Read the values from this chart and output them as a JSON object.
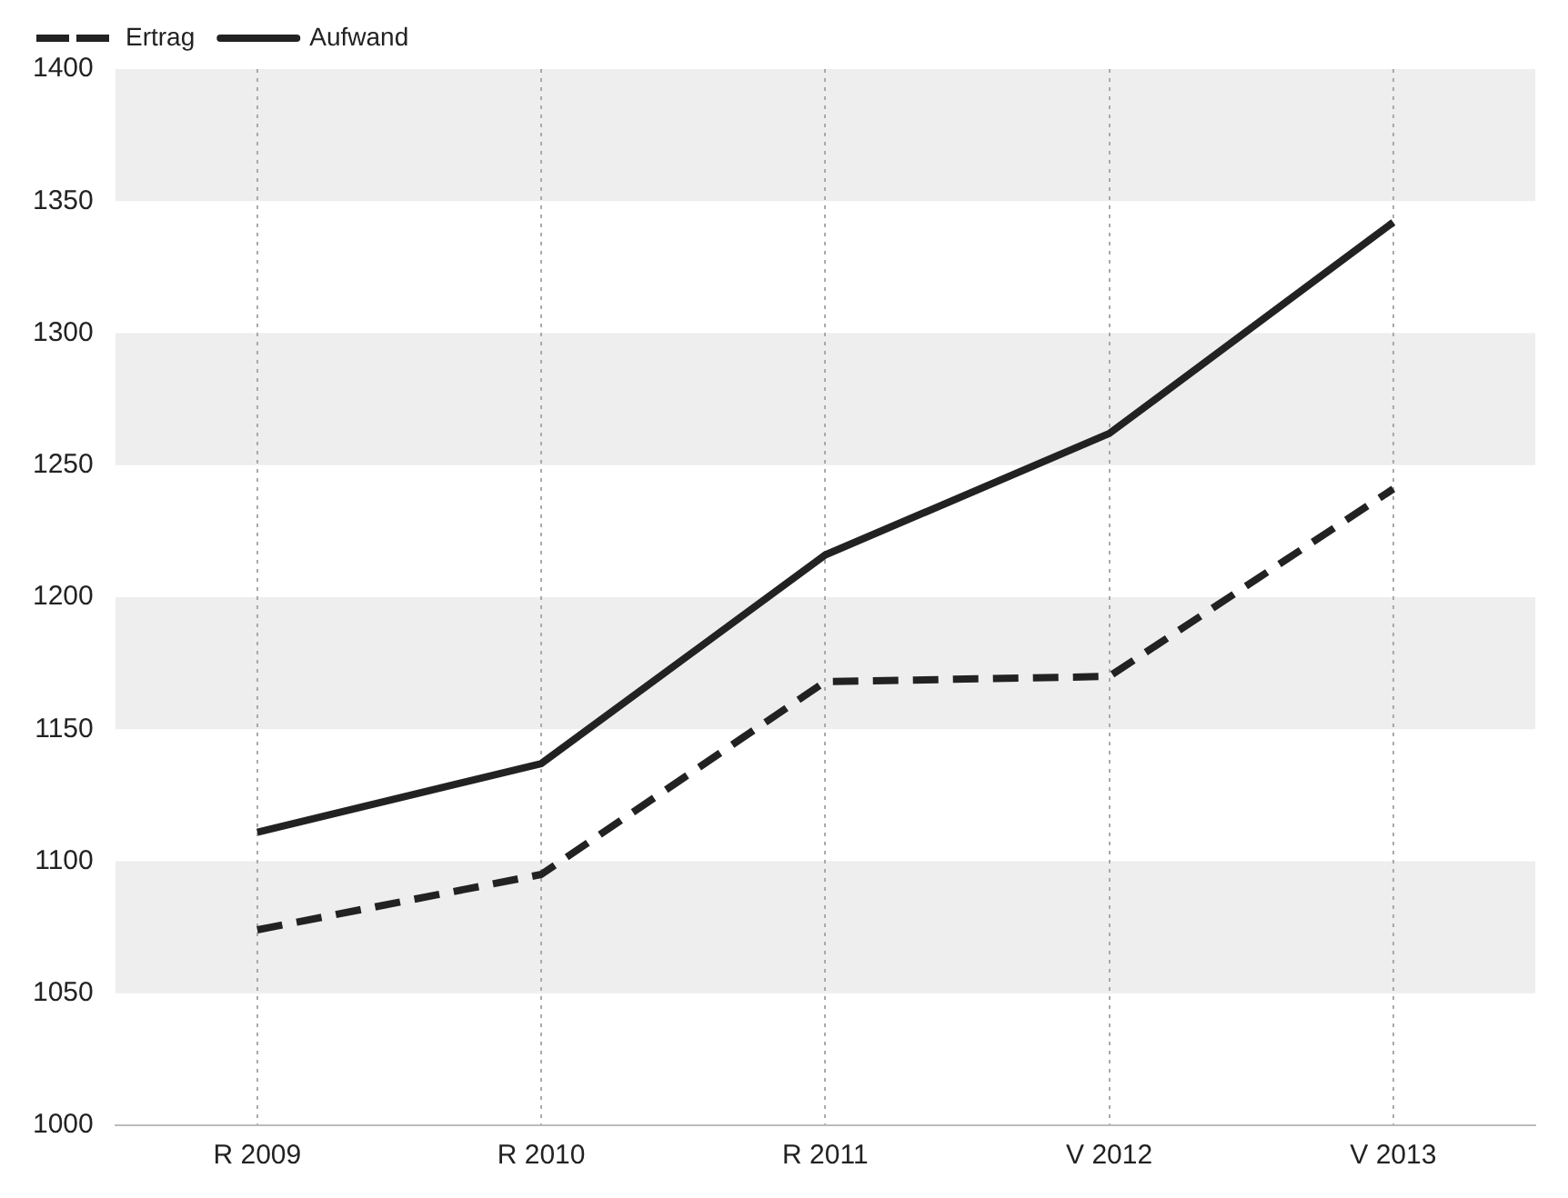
{
  "chart_data": {
    "type": "line",
    "categories": [
      "R 2009",
      "R 2010",
      "R 2011",
      "V 2012",
      "V 2013"
    ],
    "series": [
      {
        "name": "Ertrag",
        "color": "#222222",
        "line_style": "dashed",
        "values": [
          1074,
          1095,
          1168,
          1170,
          1241
        ]
      },
      {
        "name": "Aufwand",
        "color": "#222222",
        "line_style": "solid",
        "values": [
          1111,
          1137,
          1216,
          1262,
          1342
        ]
      }
    ],
    "ylim": [
      1000,
      1400
    ],
    "yticks": [
      1000,
      1050,
      1100,
      1150,
      1200,
      1250,
      1300,
      1350,
      1400
    ],
    "bands": [
      {
        "axis": "y",
        "from": 1050,
        "to": 1100,
        "color": "#eeeeee"
      },
      {
        "axis": "y",
        "from": 1150,
        "to": 1200,
        "color": "#eeeeee"
      },
      {
        "axis": "y",
        "from": 1250,
        "to": 1300,
        "color": "#eeeeee"
      },
      {
        "axis": "y",
        "from": 1350,
        "to": 1400,
        "color": "#eeeeee"
      }
    ],
    "grid": "x",
    "legend": "top left",
    "marker": "none"
  }
}
